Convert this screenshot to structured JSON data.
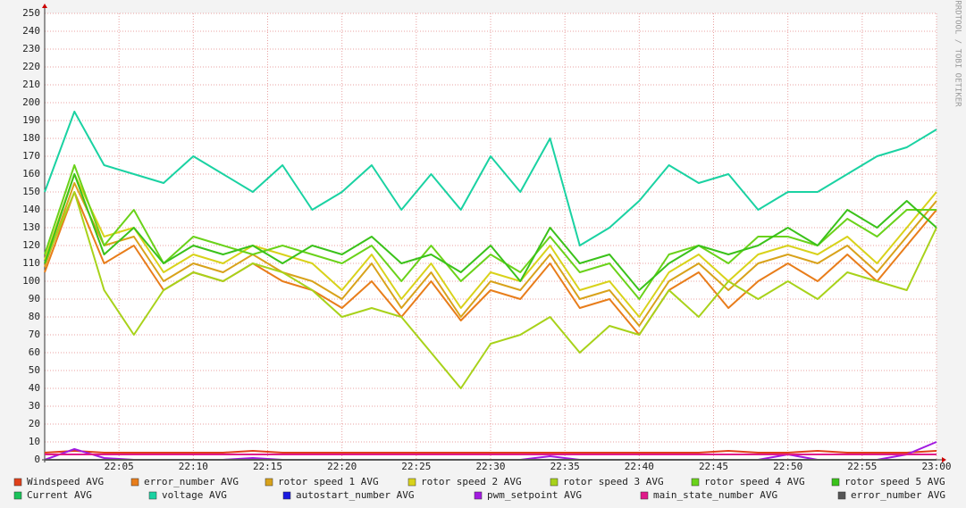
{
  "chart_data": {
    "type": "line",
    "watermark": "RRDTOOL / TOBI OETIKER",
    "x": [
      "22:00",
      "22:02",
      "22:04",
      "22:06",
      "22:08",
      "22:10",
      "22:12",
      "22:14",
      "22:16",
      "22:18",
      "22:20",
      "22:22",
      "22:24",
      "22:26",
      "22:28",
      "22:30",
      "22:32",
      "22:34",
      "22:36",
      "22:38",
      "22:40",
      "22:42",
      "22:44",
      "22:46",
      "22:48",
      "22:50",
      "22:52",
      "22:54",
      "22:56",
      "22:58",
      "23:00"
    ],
    "xlim": [
      "22:00",
      "23:00"
    ],
    "xticks": [
      "22:05",
      "22:10",
      "22:15",
      "22:20",
      "22:25",
      "22:30",
      "22:35",
      "22:40",
      "22:45",
      "22:50",
      "22:55",
      "23:00"
    ],
    "ylim": [
      0,
      250
    ],
    "yticks": [
      0,
      10,
      20,
      30,
      40,
      50,
      60,
      70,
      80,
      90,
      100,
      110,
      120,
      130,
      140,
      150,
      160,
      170,
      180,
      190,
      200,
      210,
      220,
      230,
      240,
      250
    ],
    "grid": true,
    "series": [
      {
        "name": "Windspeed AVG",
        "color": "#e0401a",
        "values": [
          4,
          5,
          4,
          4,
          4,
          4,
          4,
          5,
          4,
          4,
          4,
          4,
          4,
          4,
          4,
          4,
          4,
          4,
          4,
          4,
          4,
          4,
          4,
          5,
          4,
          4,
          5,
          4,
          4,
          4,
          5
        ]
      },
      {
        "name": "error_number AVG",
        "color": "#e87d1a",
        "values": [
          105,
          150,
          110,
          120,
          95,
          105,
          100,
          110,
          100,
          95,
          85,
          100,
          80,
          100,
          78,
          95,
          90,
          110,
          85,
          90,
          70,
          95,
          105,
          85,
          100,
          110,
          100,
          115,
          100,
          120,
          140
        ]
      },
      {
        "name": "rotor speed 1 AVG",
        "color": "#d8a21a",
        "values": [
          108,
          155,
          120,
          125,
          100,
          110,
          105,
          115,
          105,
          100,
          90,
          110,
          85,
          105,
          80,
          100,
          95,
          115,
          90,
          95,
          75,
          100,
          110,
          95,
          110,
          115,
          110,
          120,
          105,
          125,
          145
        ]
      },
      {
        "name": "rotor speed 2 AVG",
        "color": "#d8d21a",
        "values": [
          112,
          160,
          125,
          130,
          105,
          115,
          110,
          120,
          115,
          110,
          95,
          115,
          90,
          110,
          85,
          105,
          100,
          120,
          95,
          100,
          80,
          105,
          115,
          100,
          115,
          120,
          115,
          125,
          110,
          130,
          150
        ]
      },
      {
        "name": "rotor speed 3 AVG",
        "color": "#a8d21a",
        "values": [
          110,
          150,
          95,
          70,
          95,
          105,
          100,
          110,
          105,
          95,
          80,
          85,
          80,
          60,
          40,
          65,
          70,
          80,
          60,
          75,
          70,
          95,
          80,
          100,
          90,
          100,
          90,
          105,
          100,
          95,
          130
        ]
      },
      {
        "name": "rotor speed 4 AVG",
        "color": "#6ad21a",
        "values": [
          115,
          165,
          120,
          140,
          110,
          125,
          120,
          115,
          120,
          115,
          110,
          120,
          100,
          120,
          100,
          115,
          105,
          125,
          105,
          110,
          90,
          115,
          120,
          110,
          125,
          125,
          120,
          135,
          125,
          140,
          140
        ]
      },
      {
        "name": "rotor speed 5 AVG",
        "color": "#3ac21a",
        "values": [
          110,
          160,
          115,
          130,
          110,
          120,
          115,
          120,
          110,
          120,
          115,
          125,
          110,
          115,
          105,
          120,
          100,
          130,
          110,
          115,
          95,
          110,
          120,
          115,
          120,
          130,
          120,
          140,
          130,
          145,
          130
        ]
      },
      {
        "name": "Current AVG",
        "color": "#1ac25a",
        "values": [
          0,
          0,
          0,
          0,
          0,
          0,
          0,
          0,
          0,
          0,
          0,
          0,
          0,
          0,
          0,
          0,
          0,
          0,
          0,
          0,
          0,
          0,
          0,
          0,
          0,
          0,
          0,
          0,
          0,
          0,
          0
        ]
      },
      {
        "name": "voltage AVG",
        "color": "#1ad2a2",
        "values": [
          150,
          195,
          165,
          160,
          155,
          170,
          160,
          150,
          165,
          140,
          150,
          165,
          140,
          160,
          140,
          170,
          150,
          180,
          120,
          130,
          145,
          165,
          155,
          160,
          140,
          150,
          150,
          160,
          170,
          175,
          185
        ]
      },
      {
        "name": "autostart_number AVG",
        "color": "#1a1ae0",
        "values": [
          0,
          0,
          0,
          0,
          0,
          0,
          0,
          0,
          0,
          0,
          0,
          0,
          0,
          0,
          0,
          0,
          0,
          0,
          0,
          0,
          0,
          0,
          0,
          0,
          0,
          0,
          0,
          0,
          0,
          0,
          0
        ]
      },
      {
        "name": "pwm_setpoint AVG",
        "color": "#a21ae0",
        "values": [
          0,
          6,
          1,
          0,
          0,
          0,
          0,
          1,
          0,
          0,
          0,
          0,
          0,
          0,
          0,
          0,
          0,
          2,
          0,
          0,
          0,
          0,
          0,
          0,
          0,
          3,
          0,
          0,
          0,
          3,
          10
        ]
      },
      {
        "name": "main_state_number AVG",
        "color": "#e01a8a",
        "values": [
          3,
          3,
          3,
          3,
          3,
          3,
          3,
          3,
          3,
          3,
          3,
          3,
          3,
          3,
          3,
          3,
          3,
          3,
          3,
          3,
          3,
          3,
          3,
          3,
          3,
          3,
          3,
          3,
          3,
          3,
          3
        ]
      },
      {
        "name": "error_number AVG",
        "color": "#555555",
        "values": [
          0,
          0,
          0,
          0,
          0,
          0,
          0,
          0,
          0,
          0,
          0,
          0,
          0,
          0,
          0,
          0,
          0,
          0,
          0,
          0,
          0,
          0,
          0,
          0,
          0,
          0,
          0,
          0,
          0,
          0,
          0
        ]
      }
    ]
  }
}
